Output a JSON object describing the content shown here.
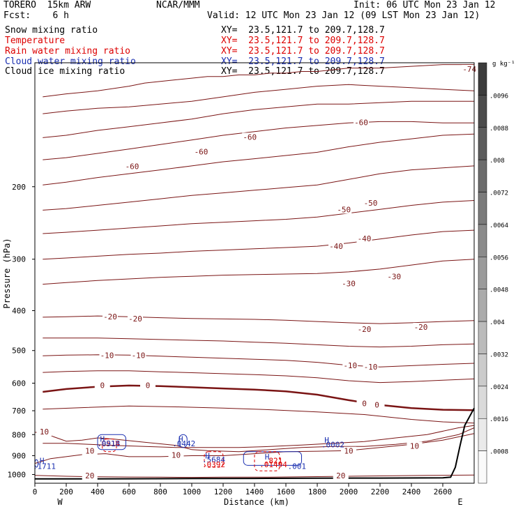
{
  "header": {
    "model": "TORERO  15km ARW",
    "center": "NCAR/MMM",
    "init": "Init: 06 UTC Mon 23 Jan 12",
    "fcst": "Fcst:    6 h",
    "valid": "Valid: 12 UTC Mon 23 Jan 12 (09 LST Mon 23 Jan 12)"
  },
  "fields": [
    {
      "name": "Snow mixing ratio",
      "xy": "XY=  23.5,121.7 to 209.7,128.7",
      "color": "#000000"
    },
    {
      "name": "Temperature",
      "xy": "XY=  23.5,121.7 to 209.7,128.7",
      "color": "#dd0000"
    },
    {
      "name": "Rain water mixing ratio",
      "xy": "XY=  23.5,121.7 to 209.7,128.7",
      "color": "#dd0000"
    },
    {
      "name": "Cloud water mixing ratio",
      "xy": "XY=  23.5,121.7 to 209.7,128.7",
      "color": "#1a2fb0"
    },
    {
      "name": "Cloud ice mixing ratio",
      "xy": "XY=  23.5,121.7 to 209.7,128.7",
      "color": "#000000"
    }
  ],
  "chart_data": {
    "type": "contour",
    "xlabel": "Distance (km)",
    "ylabel": "Pressure (hPa)",
    "xlim": [
      0,
      2800
    ],
    "ylim": [
      1050,
      100
    ],
    "y_scale": "log",
    "x_ticks": [
      0,
      200,
      400,
      600,
      800,
      1000,
      1200,
      1400,
      1600,
      1800,
      2000,
      2200,
      2400,
      2600
    ],
    "y_ticks": [
      200,
      300,
      400,
      500,
      600,
      700,
      800,
      900,
      1000
    ],
    "x_end_labels": {
      "left": "W",
      "right": "E"
    },
    "colorbar": {
      "unit": "g kg⁻¹",
      "tick_labels": [
        ".0096",
        ".0088",
        ".008",
        ".0072",
        ".0064",
        ".0056",
        ".0048",
        ".004",
        ".0032",
        ".0024",
        ".0016",
        ".0008"
      ]
    },
    "temperature_contour_labels": [
      {
        "value": -74,
        "x": 2770,
        "p": 104
      },
      {
        "value": -60,
        "x": 620,
        "p": 179
      },
      {
        "value": -60,
        "x": 1060,
        "p": 165
      },
      {
        "value": -60,
        "x": 1370,
        "p": 152
      },
      {
        "value": -60,
        "x": 2080,
        "p": 140
      },
      {
        "value": -50,
        "x": 1970,
        "p": 228
      },
      {
        "value": -50,
        "x": 2140,
        "p": 220
      },
      {
        "value": -40,
        "x": 1920,
        "p": 280
      },
      {
        "value": -40,
        "x": 2100,
        "p": 268
      },
      {
        "value": -30,
        "x": 2000,
        "p": 345
      },
      {
        "value": -30,
        "x": 2290,
        "p": 332
      },
      {
        "value": -20,
        "x": 480,
        "p": 415
      },
      {
        "value": -20,
        "x": 640,
        "p": 420
      },
      {
        "value": -20,
        "x": 2100,
        "p": 445
      },
      {
        "value": -20,
        "x": 2460,
        "p": 440
      },
      {
        "value": -10,
        "x": 460,
        "p": 515
      },
      {
        "value": -10,
        "x": 660,
        "p": 515
      },
      {
        "value": -10,
        "x": 2010,
        "p": 545
      },
      {
        "value": -10,
        "x": 2140,
        "p": 550
      },
      {
        "value": 0,
        "x": 430,
        "p": 610
      },
      {
        "value": 0,
        "x": 720,
        "p": 610
      },
      {
        "value": 0,
        "x": 2100,
        "p": 675
      },
      {
        "value": 0,
        "x": 2180,
        "p": 680
      },
      {
        "value": 10,
        "x": 60,
        "p": 790
      },
      {
        "value": 10,
        "x": 350,
        "p": 880
      },
      {
        "value": 10,
        "x": 900,
        "p": 900
      },
      {
        "value": 10,
        "x": 2000,
        "p": 880
      },
      {
        "value": 10,
        "x": 2420,
        "p": 855
      },
      {
        "value": 20,
        "x": 350,
        "p": 1010
      },
      {
        "value": 20,
        "x": 1950,
        "p": 1010
      }
    ],
    "extrema_labels": [
      {
        "text": "H",
        "x": 45,
        "p": 925
      },
      {
        "text": ".1711",
        "x": 60,
        "p": 955
      },
      {
        "text": "H",
        "x": 430,
        "p": 820
      },
      {
        "text": ".0514",
        "x": 470,
        "p": 840
      },
      {
        "text": ".0918",
        "x": 470,
        "p": 840
      },
      {
        "text": "H",
        "x": 930,
        "p": 820
      },
      {
        "text": ".0442",
        "x": 950,
        "p": 840
      },
      {
        "text": "H",
        "x": 1100,
        "p": 900
      },
      {
        "text": ".5684",
        "x": 1140,
        "p": 920
      },
      {
        "text": ".0392",
        "x": 1140,
        "p": 945
      },
      {
        "text": "H",
        "x": 1480,
        "p": 905
      },
      {
        "text": ".821",
        "x": 1520,
        "p": 925
      },
      {
        "text": ".01494",
        "x": 1520,
        "p": 945
      },
      {
        "text": "H",
        "x": 1860,
        "p": 825
      },
      {
        "text": ".0002",
        "x": 1900,
        "p": 845
      },
      {
        "text": ".001",
        "x": 1670,
        "p": 955
      }
    ]
  }
}
